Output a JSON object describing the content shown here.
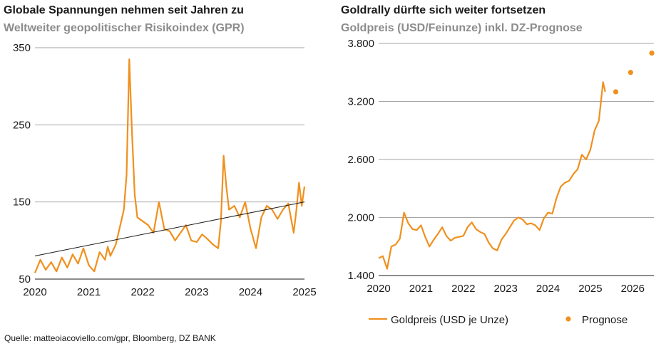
{
  "colors": {
    "series": "#f0901e",
    "trend": "#1a1a1a",
    "grid": "#a6a6a6",
    "axis": "#1a1a1a"
  },
  "source": "Quelle: matteoiacoviello.com/gpr, Bloomberg, DZ BANK",
  "chart_data": [
    {
      "type": "line",
      "title": "Globale Spannungen nehmen seit Jahren zu",
      "subtitle": "Weltweiter geopolitischer Risikoindex (GPR)",
      "x_ticks": [
        "2020",
        "2021",
        "2022",
        "2023",
        "2024",
        "2025"
      ],
      "y_ticks": [
        "50",
        "150",
        "250",
        "350"
      ],
      "xlim": [
        2020.0,
        2025.0
      ],
      "ylim": [
        50,
        350
      ],
      "grid": true,
      "series": [
        {
          "x": [
            2020.0,
            2020.1,
            2020.2,
            2020.3,
            2020.4,
            2020.5,
            2020.6,
            2020.7,
            2020.8,
            2020.9,
            2021.0,
            2021.1,
            2021.2,
            2021.3,
            2021.35,
            2021.4,
            2021.5,
            2021.6,
            2021.65,
            2021.7,
            2021.75,
            2021.8,
            2021.85,
            2021.9,
            2022.0,
            2022.1,
            2022.2,
            2022.3,
            2022.4,
            2022.5,
            2022.6,
            2022.7,
            2022.8,
            2022.9,
            2023.0,
            2023.1,
            2023.2,
            2023.3,
            2023.4,
            2023.45,
            2023.5,
            2023.55,
            2023.6,
            2023.7,
            2023.8,
            2023.9,
            2024.0,
            2024.1,
            2024.2,
            2024.3,
            2024.4,
            2024.5,
            2024.6,
            2024.7,
            2024.8,
            2024.85,
            2024.9,
            2024.95,
            2025.0
          ],
          "values": [
            58,
            75,
            62,
            72,
            60,
            78,
            65,
            82,
            70,
            90,
            68,
            60,
            85,
            75,
            92,
            80,
            95,
            125,
            140,
            185,
            335,
            240,
            160,
            130,
            125,
            120,
            110,
            150,
            115,
            112,
            100,
            110,
            120,
            100,
            98,
            108,
            102,
            95,
            90,
            125,
            210,
            170,
            140,
            145,
            130,
            150,
            115,
            90,
            130,
            145,
            140,
            128,
            140,
            148,
            110,
            140,
            175,
            145,
            170
          ]
        },
        {
          "name": "Trend",
          "x": [
            2020.0,
            2025.0
          ],
          "values": [
            80,
            150
          ]
        }
      ]
    },
    {
      "type": "line",
      "title": "Goldrally dürfte sich weiter fortsetzen",
      "subtitle": "Goldpreis (USD/Feinunze) inkl. DZ-Prognose",
      "x_ticks": [
        "2020",
        "2021",
        "2022",
        "2023",
        "2024",
        "2025",
        "2026"
      ],
      "y_ticks": [
        "1.400",
        "2.000",
        "2.600",
        "3.200",
        "3.800"
      ],
      "xlim": [
        2020.0,
        2026.5
      ],
      "ylim": [
        1400,
        3800
      ],
      "grid": true,
      "legend_position": "bottom",
      "series": [
        {
          "name": "Goldpreis (USD je Unze)",
          "x": [
            2020.0,
            2020.1,
            2020.2,
            2020.3,
            2020.4,
            2020.5,
            2020.6,
            2020.7,
            2020.8,
            2020.9,
            2021.0,
            2021.1,
            2021.2,
            2021.3,
            2021.4,
            2021.5,
            2021.6,
            2021.7,
            2021.8,
            2021.9,
            2022.0,
            2022.1,
            2022.2,
            2022.3,
            2022.4,
            2022.5,
            2022.6,
            2022.7,
            2022.8,
            2022.9,
            2023.0,
            2023.1,
            2023.2,
            2023.3,
            2023.4,
            2023.5,
            2023.6,
            2023.7,
            2023.8,
            2023.9,
            2024.0,
            2024.1,
            2024.2,
            2024.3,
            2024.4,
            2024.5,
            2024.6,
            2024.7,
            2024.8,
            2024.9,
            2025.0,
            2025.1,
            2025.2,
            2025.25,
            2025.3,
            2025.35
          ],
          "values": [
            1580,
            1600,
            1470,
            1700,
            1720,
            1780,
            2050,
            1940,
            1880,
            1870,
            1920,
            1800,
            1700,
            1770,
            1830,
            1900,
            1810,
            1760,
            1790,
            1800,
            1810,
            1900,
            1950,
            1880,
            1850,
            1830,
            1740,
            1680,
            1660,
            1770,
            1830,
            1900,
            1970,
            2000,
            1980,
            1930,
            1940,
            1920,
            1870,
            1990,
            2050,
            2040,
            2200,
            2320,
            2360,
            2380,
            2450,
            2500,
            2650,
            2600,
            2700,
            2900,
            3000,
            3200,
            3400,
            3300
          ]
        },
        {
          "name": "Prognose",
          "x": [
            2025.6,
            2025.95,
            2026.45
          ],
          "values": [
            3300,
            3500,
            3700
          ]
        }
      ]
    }
  ]
}
